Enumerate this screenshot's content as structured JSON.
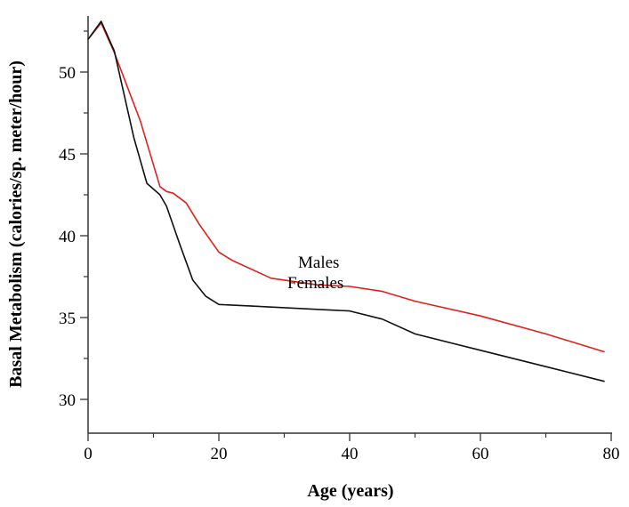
{
  "chart_data": {
    "type": "line",
    "title": "",
    "xlabel": "Age (years)",
    "ylabel": "Basal Metabolism (calories/sp. meter/hour)",
    "xlim": [
      0,
      80
    ],
    "ylim": [
      27.9,
      53.6
    ],
    "xticks": [
      0,
      20,
      40,
      60,
      80
    ],
    "xminor": [
      10,
      30,
      50,
      70
    ],
    "yticks": [
      30,
      35,
      40,
      45,
      50
    ],
    "yminor": [
      32.5,
      37.5,
      42.5,
      47.5,
      52.5
    ],
    "grid": false,
    "series": [
      {
        "name": "Males",
        "color": "#e0201b",
        "x": [
          0,
          2,
          4,
          8,
          11,
          12,
          13,
          15,
          17,
          20,
          22,
          28,
          35,
          40,
          45,
          50,
          60,
          70,
          79
        ],
        "y": [
          52.0,
          53.0,
          51.2,
          47.0,
          43.0,
          42.7,
          42.6,
          42.0,
          40.7,
          39.0,
          38.5,
          37.4,
          37.0,
          36.9,
          36.6,
          36.0,
          35.1,
          34.0,
          32.9
        ]
      },
      {
        "name": "Females",
        "color": "#111111",
        "x": [
          0,
          2,
          4,
          7,
          9,
          11,
          12,
          14,
          16,
          18,
          20,
          25,
          35,
          40,
          45,
          50,
          60,
          70,
          79
        ],
        "y": [
          52.0,
          53.1,
          51.3,
          46.0,
          43.2,
          42.5,
          41.8,
          39.5,
          37.3,
          36.3,
          35.8,
          35.7,
          35.5,
          35.4,
          34.9,
          34.0,
          33.0,
          32.0,
          31.1
        ]
      }
    ],
    "annotations": [
      {
        "text": "Males",
        "series": "Males",
        "x": 37.5,
        "y": 38.2
      },
      {
        "text": "Females",
        "series": "Females",
        "x": 36.5,
        "y": 34.9
      }
    ]
  }
}
